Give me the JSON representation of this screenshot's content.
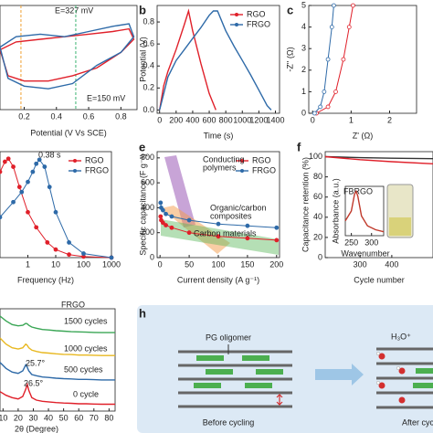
{
  "chart_data": [
    {
      "type": "line",
      "xlabel": "Potential (V Vs SCE)",
      "xlim": [
        0.05,
        0.9
      ],
      "ylim": [
        -1,
        1
      ],
      "xticks": [
        0.2,
        0.4,
        0.6,
        0.8
      ],
      "reference_lines": [
        {
          "x": 0.18,
          "color": "#f0a030",
          "label": "E=327 mV"
        },
        {
          "x": 0.52,
          "color": "#3cb371",
          "label": "E=150 mV"
        }
      ],
      "series": [
        {
          "color": "#e0202a",
          "x": [
            0.05,
            0.15,
            0.3,
            0.45,
            0.6,
            0.75,
            0.85,
            0.88,
            0.8,
            0.65,
            0.5,
            0.35,
            0.2,
            0.1,
            0.05
          ],
          "values": [
            0.15,
            0.3,
            0.35,
            0.4,
            0.45,
            0.5,
            0.55,
            0.35,
            0.1,
            -0.2,
            -0.35,
            -0.45,
            -0.45,
            -0.35,
            0.15
          ]
        },
        {
          "color": "#2e6aa8",
          "x": [
            0.05,
            0.15,
            0.3,
            0.45,
            0.6,
            0.75,
            0.85,
            0.88,
            0.8,
            0.65,
            0.5,
            0.35,
            0.2,
            0.1,
            0.05
          ],
          "values": [
            0.2,
            0.4,
            0.45,
            0.4,
            0.5,
            0.6,
            0.65,
            0.4,
            0.1,
            -0.15,
            -0.5,
            -0.6,
            -0.55,
            -0.4,
            0.2
          ]
        }
      ]
    },
    {
      "type": "line",
      "panel": "b",
      "xlabel": "Time (s)",
      "ylabel": "Potential (V)",
      "xlim": [
        -30,
        1450
      ],
      "ylim": [
        -0.03,
        0.95
      ],
      "xticks": [
        0,
        200,
        400,
        600,
        800,
        1000,
        1200,
        1400
      ],
      "yticks": [
        {
          "value": 0,
          "label": "0.0"
        },
        0.2,
        0.4,
        0.6,
        0.8
      ],
      "legend": true,
      "series": [
        {
          "name": "RGO",
          "color": "#e0202a",
          "x": [
            0,
            50,
            100,
            200,
            300,
            350,
            400,
            500,
            600,
            680
          ],
          "values": [
            0,
            0.22,
            0.35,
            0.55,
            0.78,
            0.9,
            0.72,
            0.42,
            0.15,
            0
          ]
        },
        {
          "name": "FRGO",
          "color": "#2e6aa8",
          "x": [
            0,
            100,
            200,
            300,
            400,
            500,
            600,
            650,
            700,
            800,
            900,
            1000,
            1100,
            1200,
            1300,
            1350
          ],
          "values": [
            0,
            0.3,
            0.45,
            0.55,
            0.65,
            0.75,
            0.86,
            0.9,
            0.9,
            0.72,
            0.58,
            0.45,
            0.32,
            0.18,
            0.04,
            0
          ]
        }
      ]
    },
    {
      "type": "line",
      "panel": "c",
      "xlabel": "Z' (Ω)",
      "ylabel": "-Z'' (Ω)",
      "xlim": [
        -0.1,
        2.7
      ],
      "ylim": [
        0,
        5
      ],
      "xticks": [
        0,
        1,
        2
      ],
      "yticks": [
        0,
        1,
        2,
        3,
        4,
        5
      ],
      "marker": "open",
      "series": [
        {
          "color": "#e0202a",
          "x": [
            0.1,
            0.4,
            0.6,
            0.8,
            0.95,
            1.05
          ],
          "values": [
            0,
            0.3,
            1,
            2.5,
            4,
            5
          ]
        },
        {
          "color": "#2e6aa8",
          "x": [
            0.05,
            0.2,
            0.3,
            0.4,
            0.5,
            0.55
          ],
          "values": [
            0,
            0.3,
            1,
            2.5,
            4,
            5
          ]
        }
      ]
    },
    {
      "type": "line",
      "xlabel": "Frequency (Hz)",
      "xlog": true,
      "xlim": [
        0.1,
        1000
      ],
      "ylim": [
        0,
        1.05
      ],
      "xticks": [
        1,
        10,
        100,
        1000
      ],
      "legend": true,
      "marker": "filled",
      "annotations": [
        "0.38 s"
      ],
      "series": [
        {
          "name": "RGO",
          "color": "#e0202a",
          "x": [
            0.1,
            0.15,
            0.2,
            0.3,
            0.5,
            1,
            2,
            5,
            10,
            30,
            100,
            1000
          ],
          "values": [
            0.85,
            0.95,
            0.98,
            0.9,
            0.7,
            0.45,
            0.3,
            0.15,
            0.08,
            0.03,
            0.01,
            0
          ]
        },
        {
          "name": "FRGO",
          "color": "#2e6aa8",
          "x": [
            0.1,
            0.3,
            0.6,
            1,
            1.5,
            2,
            2.6,
            4,
            6,
            10,
            30,
            100,
            1000
          ],
          "values": [
            0.4,
            0.55,
            0.65,
            0.75,
            0.85,
            0.93,
            0.97,
            0.9,
            0.7,
            0.45,
            0.15,
            0.04,
            0
          ]
        }
      ]
    },
    {
      "type": "line",
      "panel": "e",
      "xlabel": "Current density (A g⁻¹)",
      "ylabel": "Specific capacitance (F g⁻¹)",
      "xlim": [
        -5,
        205
      ],
      "ylim": [
        0,
        850
      ],
      "xticks": [
        0,
        50,
        100,
        150,
        200
      ],
      "yticks": [
        0,
        200,
        400,
        600,
        800
      ],
      "legend": true,
      "marker": "filled",
      "annotations": [
        "Conducting",
        "polymers",
        "Organic/carbon",
        "composites",
        "Carbon materials"
      ],
      "series": [
        {
          "name": "RGO",
          "color": "#e0202a",
          "x": [
            1,
            2,
            5,
            10,
            20,
            50,
            100,
            150,
            200
          ],
          "values": [
            330,
            300,
            280,
            260,
            240,
            200,
            170,
            155,
            140
          ]
        },
        {
          "name": "FRGO",
          "color": "#2e6aa8",
          "x": [
            1,
            2,
            5,
            10,
            20,
            50,
            100,
            150,
            200
          ],
          "values": [
            440,
            400,
            380,
            350,
            330,
            300,
            270,
            255,
            240
          ]
        }
      ]
    },
    {
      "type": "line",
      "panel": "f",
      "xlabel": "Cycle number",
      "ylabel": "Capacitance retention (%)",
      "xlim": [
        190,
        530
      ],
      "ylim": [
        0,
        105
      ],
      "xticks": [
        300,
        400
      ],
      "yticks": [
        0,
        20,
        40,
        60,
        80,
        100
      ],
      "series": [
        {
          "color": "#333333",
          "x": [
            190,
            300,
            400,
            530
          ],
          "values": [
            100,
            99,
            98.5,
            98
          ]
        },
        {
          "color": "#e0202a",
          "x": [
            190,
            300,
            400,
            530
          ],
          "values": [
            100,
            97,
            95,
            93
          ]
        }
      ]
    },
    {
      "type": "line",
      "title": "FBRGO",
      "xlabel": "Wavenumber",
      "ylabel": "Absorbance (a.u.)",
      "xlim": [
        235,
        330
      ],
      "ylim": [
        0,
        1
      ],
      "xticks": [
        250,
        300
      ],
      "series": [
        {
          "color": "#c0392b",
          "x": [
            235,
            250,
            258,
            262,
            266,
            275,
            290,
            310,
            330
          ],
          "values": [
            0.3,
            0.5,
            0.85,
            0.9,
            0.8,
            0.4,
            0.2,
            0.12,
            0.08
          ]
        }
      ]
    },
    {
      "type": "line",
      "title": "FRGO",
      "xlabel": "2θ (Degree)",
      "xlim": [
        8,
        84
      ],
      "ylim": [
        0,
        4.2
      ],
      "xticks": [
        10,
        20,
        30,
        40,
        50,
        60,
        70,
        80
      ],
      "annotations": [
        "25.7°",
        "26.5°"
      ],
      "series": [
        {
          "name": "1500 cycles",
          "color": "#3aa655",
          "x": [
            8,
            12,
            16,
            20,
            23,
            25,
            26,
            27,
            29,
            32,
            36,
            40,
            45,
            50,
            55,
            60,
            65,
            70,
            75,
            80,
            84
          ],
          "values": [
            3.9,
            3.7,
            3.55,
            3.5,
            3.52,
            3.6,
            3.58,
            3.52,
            3.45,
            3.4,
            3.35,
            3.33,
            3.3,
            3.28,
            3.26,
            3.25,
            3.24,
            3.23,
            3.22,
            3.22,
            3.22
          ]
        },
        {
          "name": "1000 cycles",
          "color": "#e8b820",
          "x": [
            8,
            12,
            16,
            20,
            23,
            25,
            26,
            27,
            29,
            32,
            36,
            40,
            45,
            50,
            55,
            60,
            65,
            70,
            75,
            80,
            84
          ],
          "values": [
            3.0,
            2.75,
            2.6,
            2.55,
            2.6,
            2.75,
            2.7,
            2.6,
            2.5,
            2.45,
            2.4,
            2.38,
            2.35,
            2.33,
            2.32,
            2.3,
            2.3,
            2.29,
            2.28,
            2.28,
            2.28
          ]
        },
        {
          "name": "500 cycles",
          "color": "#2e6aa8",
          "x": [
            8,
            12,
            16,
            20,
            23,
            25,
            26,
            27,
            29,
            32,
            36,
            40,
            45,
            50,
            55,
            60,
            65,
            70,
            75,
            80,
            84
          ],
          "values": [
            2.0,
            1.75,
            1.6,
            1.55,
            1.65,
            1.9,
            1.8,
            1.65,
            1.5,
            1.45,
            1.4,
            1.38,
            1.35,
            1.33,
            1.32,
            1.3,
            1.3,
            1.29,
            1.28,
            1.28,
            1.28
          ]
        },
        {
          "name": "0 cycle",
          "color": "#e0202a",
          "x": [
            8,
            12,
            16,
            20,
            23,
            25,
            26,
            27,
            29,
            32,
            36,
            40,
            45,
            50,
            55,
            60,
            65,
            70,
            75,
            80,
            84
          ],
          "values": [
            0.8,
            0.65,
            0.55,
            0.5,
            0.6,
            0.9,
            1.1,
            0.85,
            0.55,
            0.45,
            0.4,
            0.38,
            0.35,
            0.33,
            0.32,
            0.3,
            0.3,
            0.29,
            0.28,
            0.28,
            0.28
          ]
        }
      ]
    }
  ],
  "diagram": {
    "panel": "h",
    "pg_oligomer": "PG oligomer",
    "before": "Before cycling",
    "ion": "H₃O⁺",
    "after": "After cycling"
  }
}
